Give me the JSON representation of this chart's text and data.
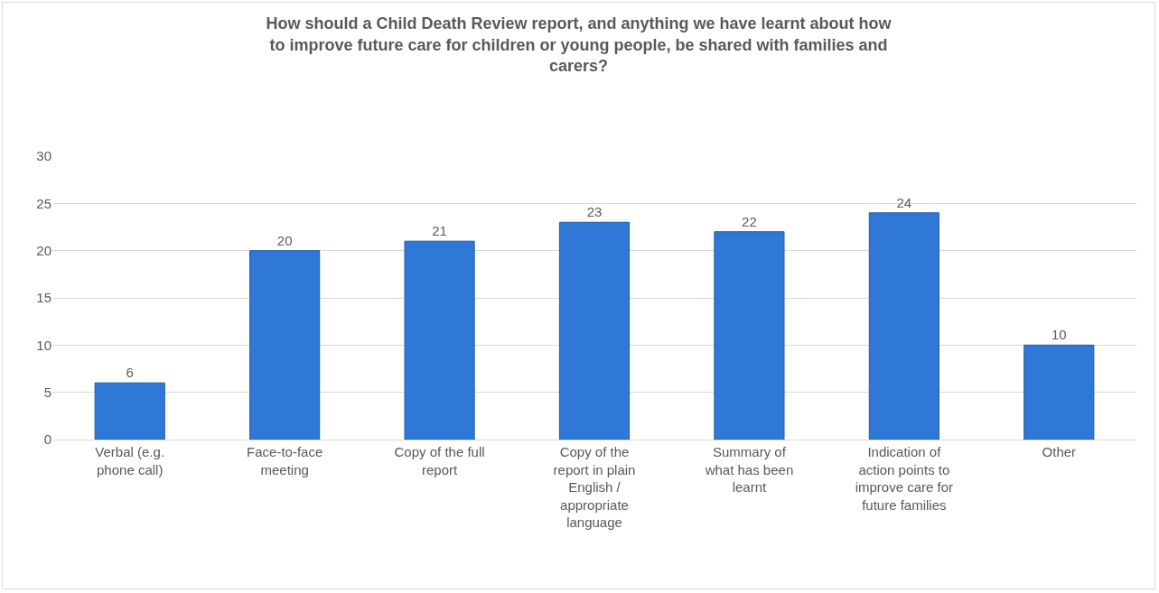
{
  "chart_data": {
    "type": "bar",
    "title": "How should a Child Death Review report, and anything we have learnt about how\nto improve future care for children or young people, be shared with families and\ncarers?",
    "categories": [
      "Verbal (e.g.\nphone call)",
      "Face-to-face\nmeeting",
      "Copy of the full\nreport",
      "Copy of the\nreport in plain\nEnglish /\nappropriate\nlanguage",
      "Summary of\nwhat has been\nlearnt",
      "Indication of\naction points to\nimprove care for\nfuture families",
      "Other"
    ],
    "values": [
      6,
      20,
      21,
      23,
      22,
      24,
      10
    ],
    "color": "#2f78d8",
    "ylim": [
      0,
      30
    ],
    "yticks": [
      0,
      5,
      10,
      15,
      20,
      25,
      30
    ],
    "grid": "y",
    "data_labels": true,
    "legend": false
  }
}
